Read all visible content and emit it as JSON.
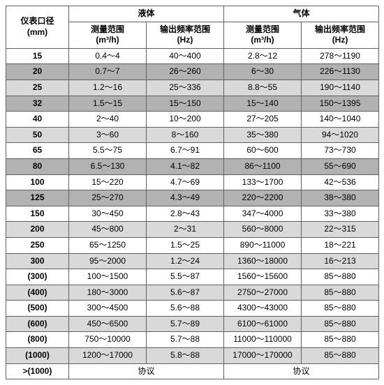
{
  "table": {
    "header": {
      "meter_dia_line1": "仪表口径",
      "meter_dia_line2": "(mm)",
      "liquid": "液体",
      "gas": "气体",
      "meas_range_line1": "测量范围",
      "meas_range_unit": "(m³/h)",
      "freq_range_line1": "输出频率范围",
      "freq_range_unit": "(Hz)"
    },
    "row_colors": {
      "white": "#ffffff",
      "light": "#d9d9da",
      "dark": "#b3b2b3"
    },
    "rows": [
      {
        "shade": "white",
        "dia": "15",
        "liq_range": "0.4～4",
        "liq_freq": "40～400",
        "gas_range": "2.8～12",
        "gas_freq": "278～1190"
      },
      {
        "shade": "dark",
        "dia": "20",
        "liq_range": "0.7～7",
        "liq_freq": "26～260",
        "gas_range": "6～30",
        "gas_freq": "226～1130"
      },
      {
        "shade": "light",
        "dia": "25",
        "liq_range": "1.2～16",
        "liq_freq": "25～336",
        "gas_range": "8.8～55",
        "gas_freq": "190～1140"
      },
      {
        "shade": "dark",
        "dia": "32",
        "liq_range": "1.5～15",
        "liq_freq": "15～150",
        "gas_range": "15～140",
        "gas_freq": "150～1395"
      },
      {
        "shade": "white",
        "dia": "40",
        "liq_range": "2～40",
        "liq_freq": "10～200",
        "gas_range": "27～205",
        "gas_freq": "140～1040"
      },
      {
        "shade": "light",
        "dia": "50",
        "liq_range": "3～60",
        "liq_freq": "8～160",
        "gas_range": "35～380",
        "gas_freq": "94～1020"
      },
      {
        "shade": "white",
        "dia": "65",
        "liq_range": "5.5～75",
        "liq_freq": "6.7～91",
        "gas_range": "60～600",
        "gas_freq": "73～730"
      },
      {
        "shade": "dark",
        "dia": "80",
        "liq_range": "6.5～130",
        "liq_freq": "4.1～82",
        "gas_range": "86～1100",
        "gas_freq": "55～690"
      },
      {
        "shade": "white",
        "dia": "100",
        "liq_range": "15～220",
        "liq_freq": "4.7～69",
        "gas_range": "133～1700",
        "gas_freq": "42～536"
      },
      {
        "shade": "dark",
        "dia": "125",
        "liq_range": "25～270",
        "liq_freq": "4.3～49",
        "gas_range": "220～2200",
        "gas_freq": "38～380"
      },
      {
        "shade": "white",
        "dia": "150",
        "liq_range": "30～450",
        "liq_freq": "2.8～43",
        "gas_range": "347～4000",
        "gas_freq": "33～380"
      },
      {
        "shade": "light",
        "dia": "200",
        "liq_range": "45～800",
        "liq_freq": "2～31",
        "gas_range": "560～8000",
        "gas_freq": "22～315"
      },
      {
        "shade": "white",
        "dia": "250",
        "liq_range": "65～1250",
        "liq_freq": "1.5～25",
        "gas_range": "890～11000",
        "gas_freq": "18～221"
      },
      {
        "shade": "light",
        "dia": "300",
        "liq_range": "95～2000",
        "liq_freq": "1.2～24",
        "gas_range": "1360～18000",
        "gas_freq": "16～213"
      },
      {
        "shade": "white",
        "dia": "(300)",
        "liq_range": "100～1500",
        "liq_freq": "5.5～87",
        "gas_range": "1560～15600",
        "gas_freq": "85～880"
      },
      {
        "shade": "light",
        "dia": "(400)",
        "liq_range": "180～3000",
        "liq_freq": "5.6～87",
        "gas_range": "2750～27000",
        "gas_freq": "85～880"
      },
      {
        "shade": "white",
        "dia": "(500)",
        "liq_range": "300～4500",
        "liq_freq": "5.6～88",
        "gas_range": "4300～43000",
        "gas_freq": "85～880"
      },
      {
        "shade": "light",
        "dia": "(600)",
        "liq_range": "450～6500",
        "liq_freq": "5.7～89",
        "gas_range": "6100～61000",
        "gas_freq": "85～880"
      },
      {
        "shade": "white",
        "dia": "(800)",
        "liq_range": "750～10000",
        "liq_freq": "5.7～88",
        "gas_range": "11000～110000",
        "gas_freq": "85～880"
      },
      {
        "shade": "light",
        "dia": "(1000)",
        "liq_range": "1200～17000",
        "liq_freq": "5.8～88",
        "gas_range": "17000～170000",
        "gas_freq": "85～880"
      },
      {
        "shade": "white",
        "dia": ">(1000)",
        "liq_merged": "协议",
        "gas_merged": "协议"
      }
    ]
  }
}
